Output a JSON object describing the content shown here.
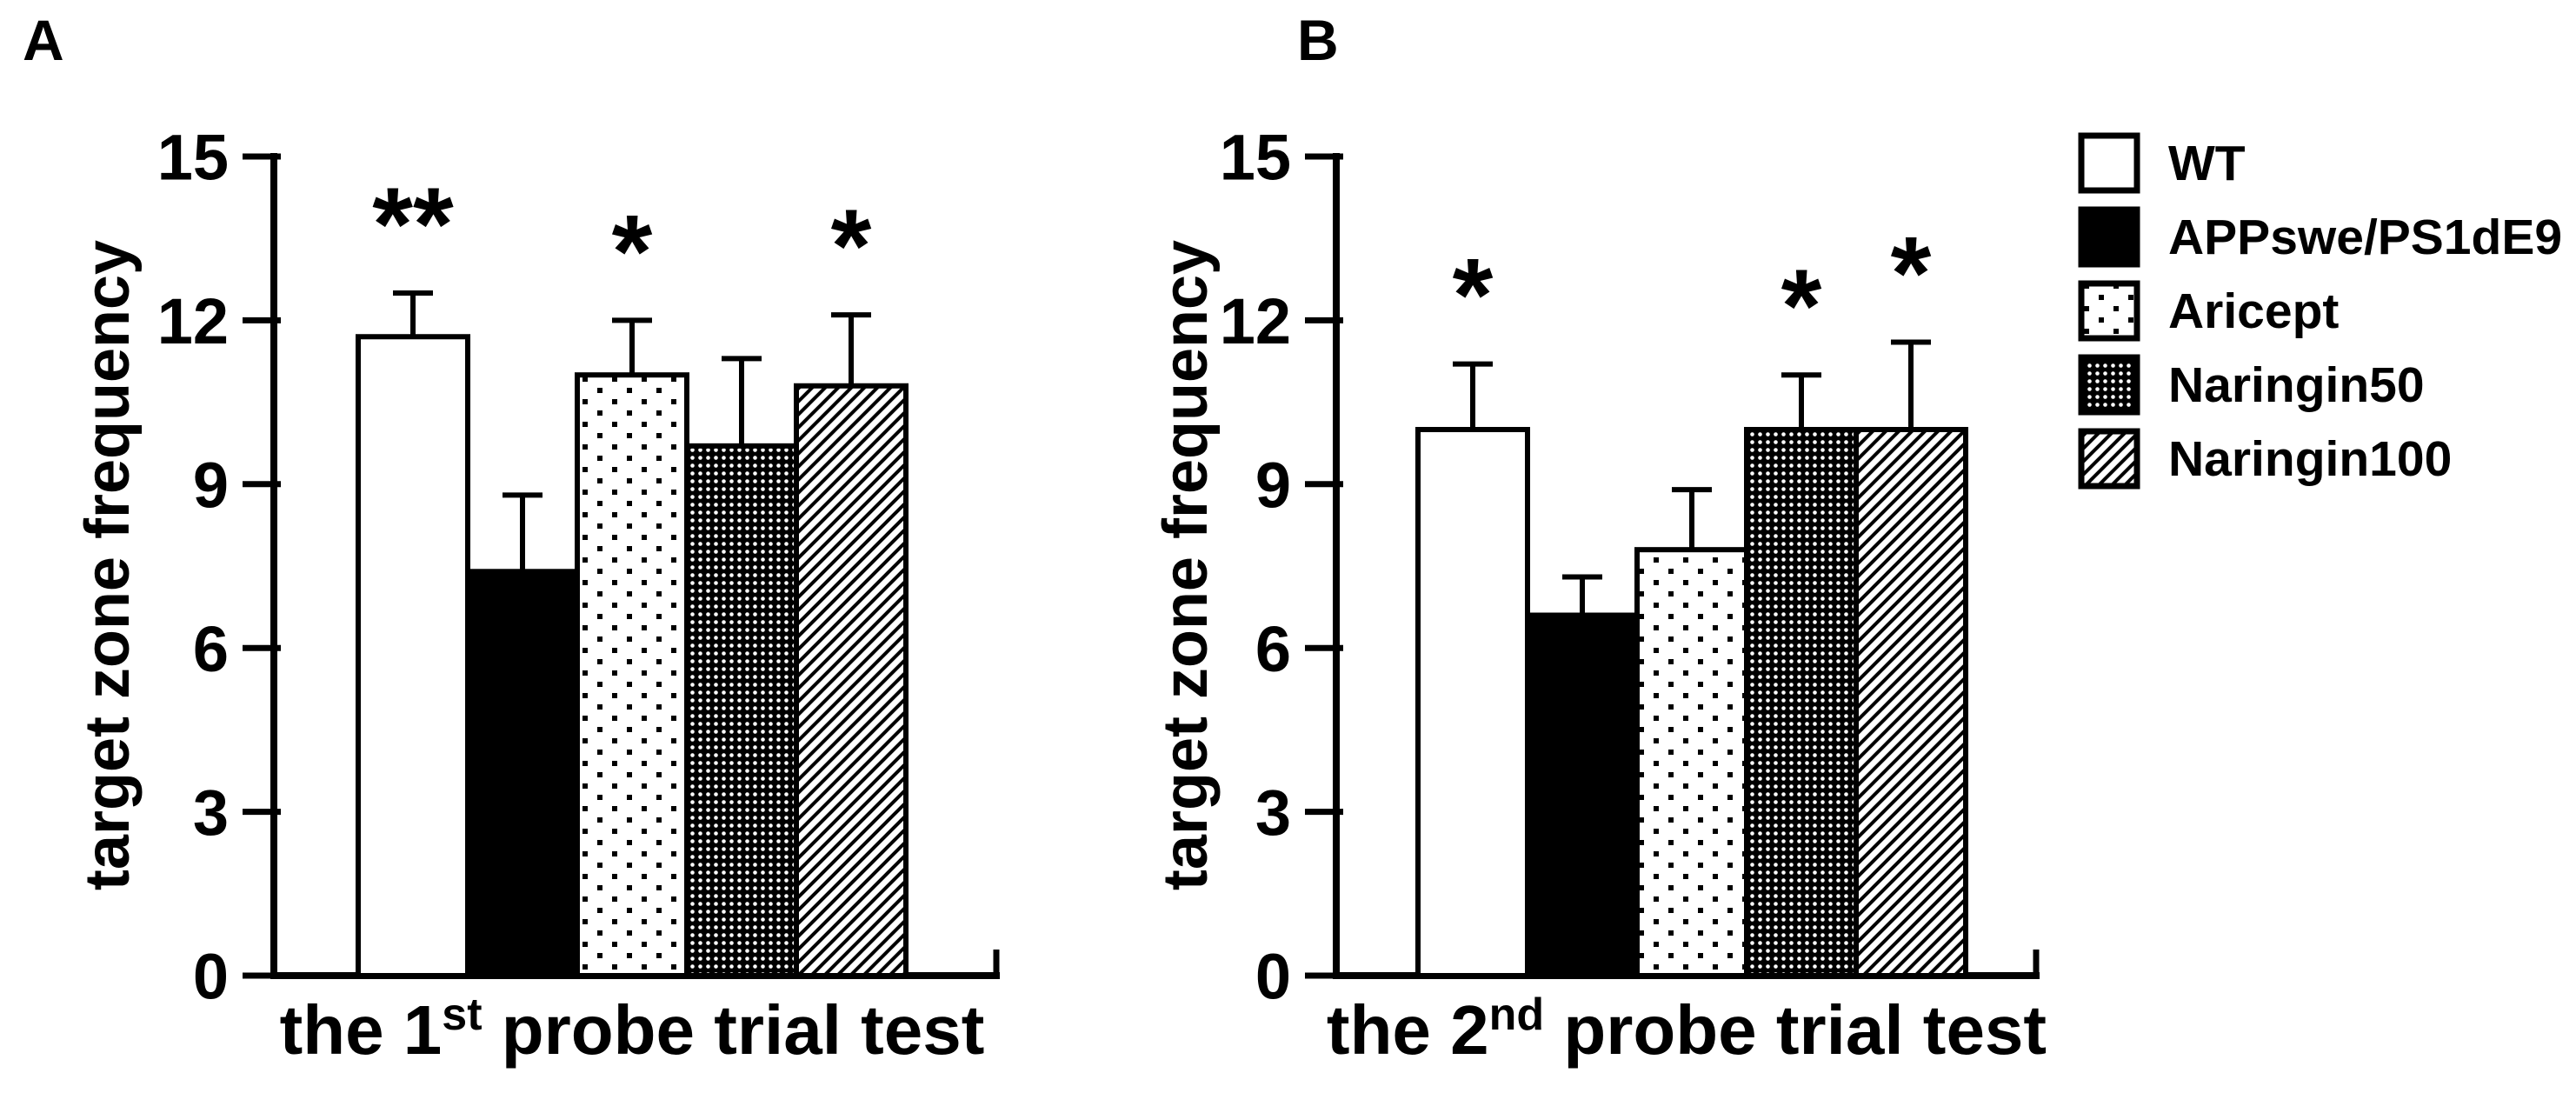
{
  "figure": {
    "background_color": "#ffffff",
    "ink_color": "#000000"
  },
  "chart_data": [
    {
      "type": "bar",
      "panel_label": "A",
      "categories": [
        "WT",
        "APPswe/PS1dE9",
        "Aricept",
        "Naringin50",
        "Naringin100"
      ],
      "values": [
        11.7,
        7.4,
        11.0,
        9.7,
        10.8
      ],
      "errors": [
        0.8,
        1.4,
        1.0,
        1.6,
        1.3
      ],
      "significance": [
        "**",
        "",
        "*",
        "",
        "*"
      ],
      "bar_patterns": [
        "solid-white",
        "solid-black",
        "sparse-dots",
        "dense-dots",
        "diagonal-stripes"
      ],
      "ylabel": "target zone frequency",
      "xlabel_prefix": "the 1",
      "xlabel_sup": "st",
      "xlabel_suffix": " probe trial test",
      "ylim": [
        0,
        15
      ],
      "yticks": [
        0,
        3,
        6,
        9,
        12,
        15
      ],
      "grid": "off",
      "error_bars": "upper-only"
    },
    {
      "type": "bar",
      "panel_label": "B",
      "categories": [
        "WT",
        "APPswe/PS1dE9",
        "Aricept",
        "Naringin50",
        "Naringin100"
      ],
      "values": [
        10.0,
        6.6,
        7.8,
        10.0,
        10.0
      ],
      "errors": [
        1.2,
        0.7,
        1.1,
        1.0,
        1.6
      ],
      "significance": [
        "*",
        "",
        "",
        "*",
        "*"
      ],
      "bar_patterns": [
        "solid-white",
        "solid-black",
        "sparse-dots",
        "dense-dots",
        "diagonal-stripes"
      ],
      "ylabel": "target zone frequency",
      "xlabel_prefix": "the 2",
      "xlabel_sup": "nd",
      "xlabel_suffix": " probe trial test",
      "ylim": [
        0,
        15
      ],
      "yticks": [
        0,
        3,
        6,
        9,
        12,
        15
      ],
      "grid": "off",
      "error_bars": "upper-only"
    }
  ],
  "legend": {
    "position": "top-right",
    "items": [
      {
        "label": "WT",
        "pattern": "solid-white"
      },
      {
        "label": "APPswe/PS1dE9",
        "pattern": "solid-black"
      },
      {
        "label": "Aricept",
        "pattern": "sparse-dots"
      },
      {
        "label": "Naringin50",
        "pattern": "dense-dots"
      },
      {
        "label": "Naringin100",
        "pattern": "diagonal-stripes"
      }
    ]
  }
}
